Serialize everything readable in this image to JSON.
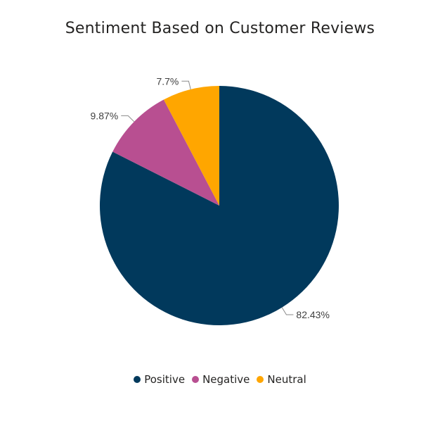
{
  "chart_data": {
    "type": "pie",
    "title": "Sentiment Based on Customer Reviews",
    "slices": [
      {
        "label": "Positive",
        "value": 82.43,
        "display": "82.43%",
        "color": "#01395c"
      },
      {
        "label": "Negative",
        "value": 9.87,
        "display": "9.87%",
        "color": "#b84f91"
      },
      {
        "label": "Neutral",
        "value": 7.7,
        "display": "7.7%",
        "color": "#ffa600"
      }
    ],
    "legend_position": "bottom-center"
  }
}
